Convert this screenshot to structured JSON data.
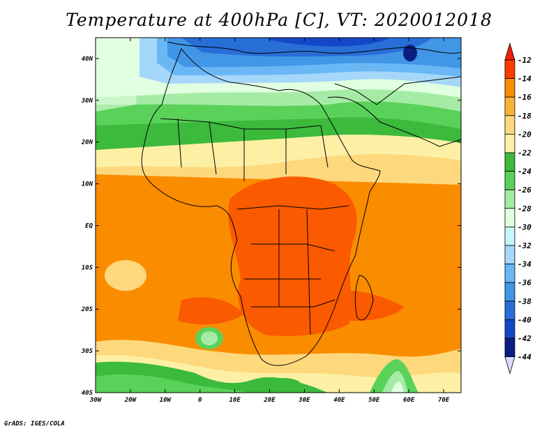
{
  "title": "Temperature at 400hPa [C], VT: 2020012018",
  "credit": "GrADS: IGES/COLA",
  "map": {
    "lon_labels": [
      "30W",
      "20W",
      "10W",
      "0",
      "10E",
      "20E",
      "30E",
      "40E",
      "50E",
      "60E",
      "70E"
    ],
    "lat_labels": [
      "40N",
      "30N",
      "20N",
      "10N",
      "EQ",
      "10S",
      "20S",
      "30S",
      "40S"
    ],
    "lon_range": [
      -30,
      75
    ],
    "lat_range": [
      -40,
      45
    ]
  },
  "colorbar": {
    "labels": [
      "-12",
      "-14",
      "-16",
      "-18",
      "-20",
      "-22",
      "-24",
      "-26",
      "-28",
      "-30",
      "-32",
      "-34",
      "-36",
      "-38",
      "-40",
      "-42",
      "-44"
    ],
    "colors": [
      "#fa3c00",
      "#fa8c00",
      "#fbb234",
      "#fdd87c",
      "#fdf0a5",
      "#3cba3c",
      "#5ad25a",
      "#a5eba5",
      "#e1ffe1",
      "#c8f5fa",
      "#a5d7fa",
      "#69b7f5",
      "#4196e6",
      "#286ed7",
      "#1447c8",
      "#0a1e82"
    ],
    "top_triangle_color": "#f01e0a",
    "bottom_triangle_color": "#dcdcff"
  }
}
